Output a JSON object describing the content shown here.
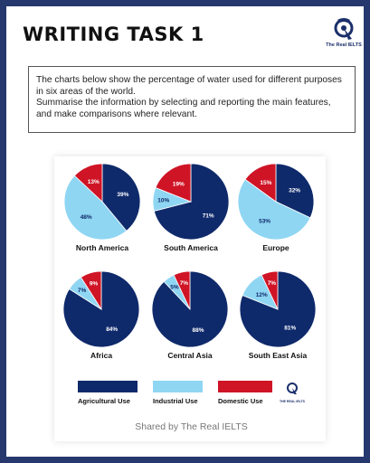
{
  "header": {
    "title": "WRITING TASK 1",
    "logo_icon": "the-real-ielts-logo-icon",
    "logo_text": "The Real IELTS"
  },
  "task": {
    "line1": "The charts below show the percentage of water used for different purposes in six areas of the world.",
    "line2": "Summarise the information by selecting and reporting the main features, and make comparisons where relevant."
  },
  "footer": {
    "shared": "Shared by The Real IELTS",
    "small_logo_text": "THE REAL IELTS"
  },
  "colors": {
    "agricultural": "#0f2a6b",
    "industrial": "#8fd6f3",
    "domestic": "#cf1426",
    "frame": "#27386e"
  },
  "chart_data": {
    "type": "pie",
    "series_names": [
      "Agricultural Use",
      "Industrial Use",
      "Domestic Use"
    ],
    "legend_position": "bottom",
    "regions": [
      {
        "name": "North America",
        "values": [
          39,
          48,
          13
        ]
      },
      {
        "name": "South America",
        "values": [
          71,
          10,
          19
        ]
      },
      {
        "name": "Europe",
        "values": [
          32,
          53,
          15
        ]
      },
      {
        "name": "Africa",
        "values": [
          84,
          7,
          9
        ]
      },
      {
        "name": "Central Asia",
        "values": [
          88,
          5,
          7
        ]
      },
      {
        "name": "South East Asia",
        "values": [
          81,
          12,
          7
        ]
      }
    ]
  }
}
